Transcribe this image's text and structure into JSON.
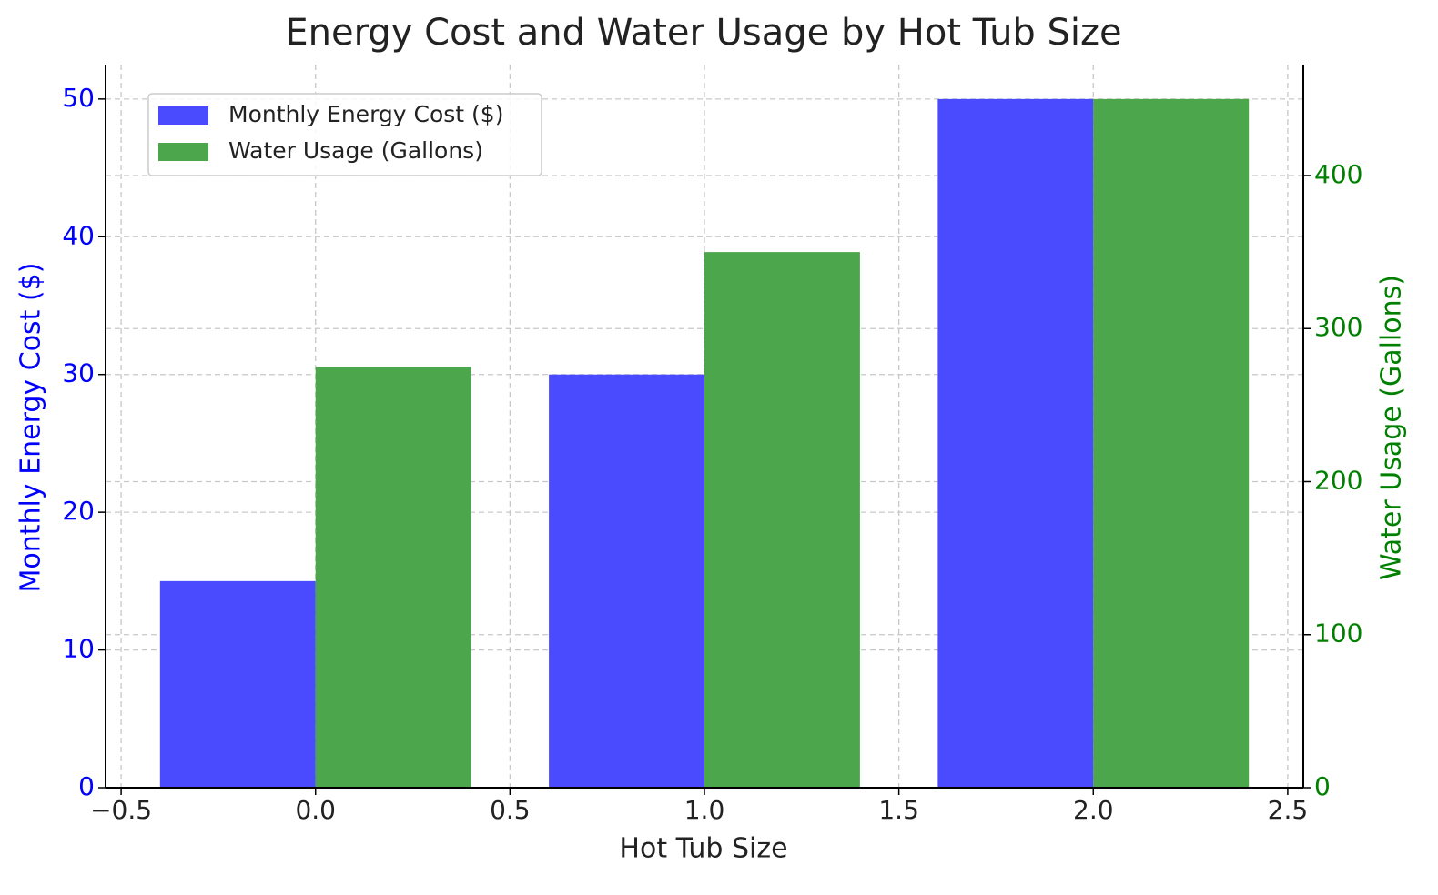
{
  "chart_data": {
    "type": "bar",
    "title": "Energy Cost and Water Usage by Hot Tub Size",
    "x_label": "Hot Tub Size",
    "y_label": "Monthly Energy Cost ($)",
    "y2_label": "Water Usage (Gallons)",
    "x": [
      0,
      1,
      2
    ],
    "series": [
      {
        "name": "Monthly Energy Cost ($)",
        "color": "#4a4aff",
        "values": [
          15,
          30,
          50
        ]
      },
      {
        "name": "Water Usage (Gallons)",
        "color": "#4ca64c",
        "values": [
          275,
          350,
          450
        ],
        "axis": "y2"
      }
    ],
    "xlim": [
      -0.54,
      2.54
    ],
    "xticks": [
      {
        "value": -0.5,
        "label": "−0.5"
      },
      {
        "value": 0,
        "label": "0.0"
      },
      {
        "value": 0.5,
        "label": "0.5"
      },
      {
        "value": 1,
        "label": "1.0"
      },
      {
        "value": 1.5,
        "label": "1.5"
      },
      {
        "value": 2,
        "label": "2.0"
      },
      {
        "value": 2.5,
        "label": "2.5"
      }
    ],
    "ylim": [
      0,
      52.5
    ],
    "yticks": [
      0,
      10,
      20,
      30,
      40,
      50
    ],
    "y2lim": [
      0,
      472.5
    ],
    "y2ticks": [
      0,
      100,
      200,
      300,
      400
    ],
    "y_color": "#0000ff",
    "y2_color": "#008000",
    "grid": true,
    "legend": "upper-left"
  }
}
